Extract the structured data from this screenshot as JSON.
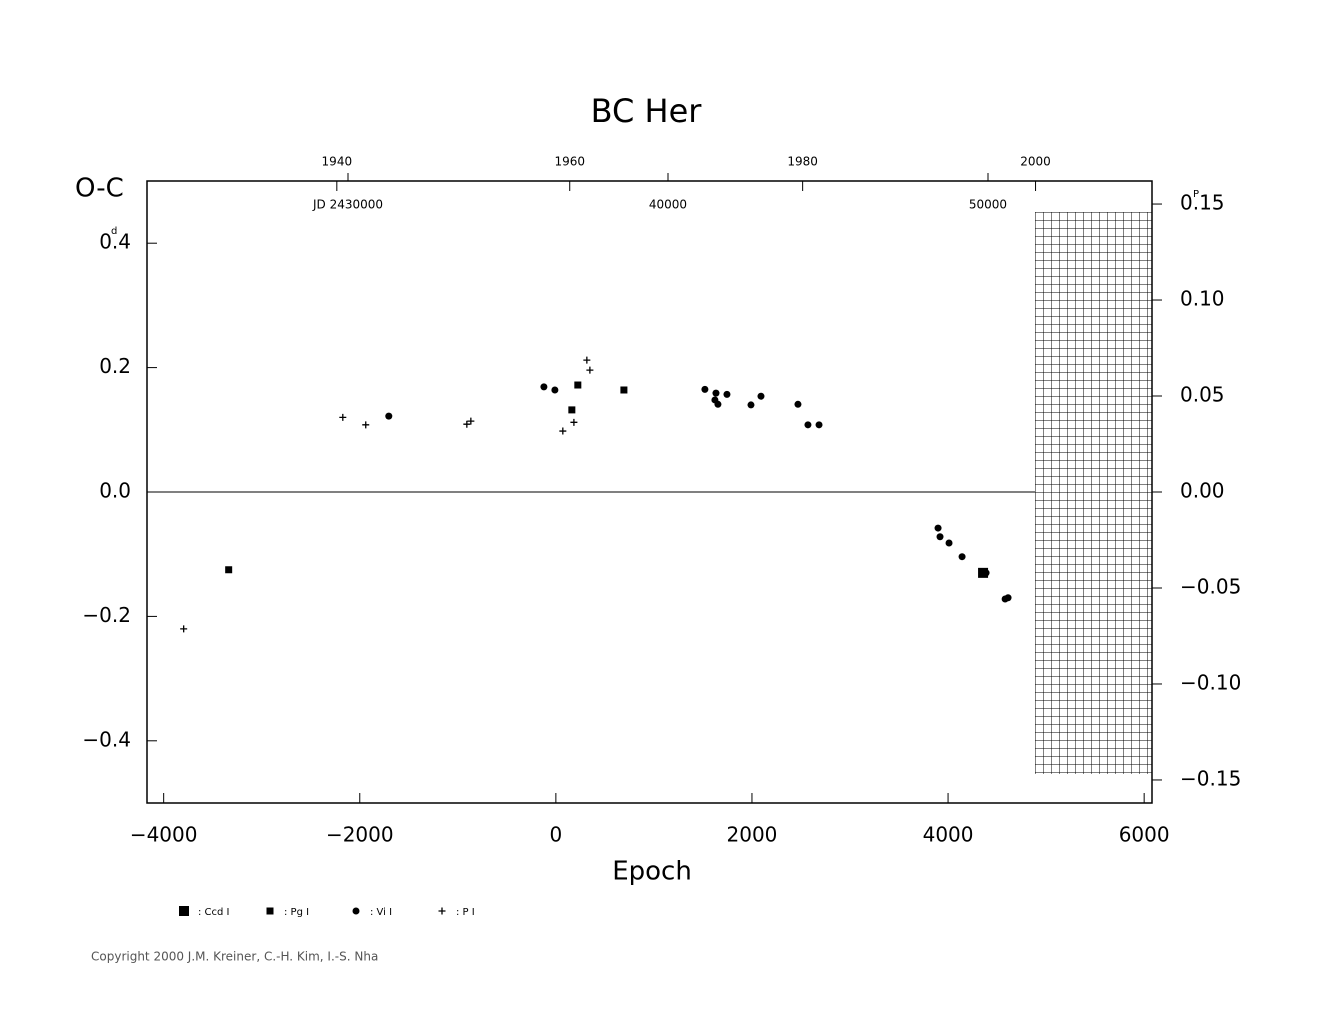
{
  "chart_data": {
    "type": "scatter",
    "title": "BC Her",
    "y_label": "O-C",
    "y_unit": "d",
    "y2_unit": "P",
    "x_label": "Epoch",
    "copyright": "Copyright 2000 J.M. Kreiner, C.-H. Kim, I.-S. Nha",
    "xlim": [
      -4170,
      6080
    ],
    "xticks": [
      {
        "value": -4000,
        "label": "−4000"
      },
      {
        "value": -2000,
        "label": "−2000"
      },
      0,
      2000,
      4000,
      6000
    ],
    "ylim": [
      -0.5,
      0.5
    ],
    "yticks": [
      {
        "value": -0.4,
        "label": "−0.4"
      },
      {
        "value": -0.2,
        "label": "−0.2"
      },
      {
        "value": 0,
        "label": "0.0"
      },
      0.2,
      0.4
    ],
    "y2lim": [
      -0.162,
      0.162
    ],
    "y2ticks": [
      {
        "value": -0.15,
        "label": "−0.15"
      },
      {
        "value": -0.1,
        "label": "−0.10"
      },
      {
        "value": -0.05,
        "label": "−0.05"
      },
      {
        "value": 0,
        "label": "0.00"
      },
      0.05,
      {
        "value": 0.1,
        "label": "0.10"
      },
      0.15
    ],
    "x2lim": [
      1923.7,
      2010.0
    ],
    "x2ticks": [
      1940,
      1960,
      1980,
      2000
    ],
    "x3lim": [
      2423719,
      2455125
    ],
    "x3ticks": [
      {
        "value": 2430000,
        "label": "JD 2430000"
      },
      {
        "value": 2440000,
        "label": "40000"
      },
      {
        "value": 2450000,
        "label": "50000"
      }
    ],
    "series": [
      {
        "name": ": Ccd I",
        "marker": "square-large",
        "color": "#000000",
        "x": [
          4357
        ],
        "values": [
          -0.13
        ]
      },
      {
        "name": ": Pg I",
        "marker": "square",
        "color": "#000000",
        "x": [
          -3337,
          224,
          163,
          694
        ],
        "values": [
          -0.125,
          0.172,
          0.132,
          0.164
        ]
      },
      {
        "name": ": Vi I",
        "marker": "circle",
        "color": "#000000",
        "x": [
          -1704,
          -122,
          -10,
          1520,
          1633,
          1622,
          1653,
          1745,
          1990,
          2092,
          2469,
          2571,
          2684,
          3898,
          3918,
          4010,
          4143,
          4388,
          4582,
          4612
        ],
        "values": [
          0.122,
          0.169,
          0.164,
          0.165,
          0.159,
          0.148,
          0.141,
          0.157,
          0.14,
          0.154,
          0.141,
          0.108,
          0.108,
          -0.058,
          -0.072,
          -0.082,
          -0.104,
          -0.13,
          -0.172,
          -0.17
        ]
      },
      {
        "name": ": P I",
        "marker": "plus",
        "color": "#000000",
        "x": [
          -3796,
          -2173,
          -1939,
          -908,
          -867,
          71,
          184,
          316,
          347
        ],
        "values": [
          -0.22,
          0.12,
          0.108,
          0.109,
          0.114,
          0.098,
          0.112,
          0.212,
          0.196
        ]
      }
    ]
  }
}
